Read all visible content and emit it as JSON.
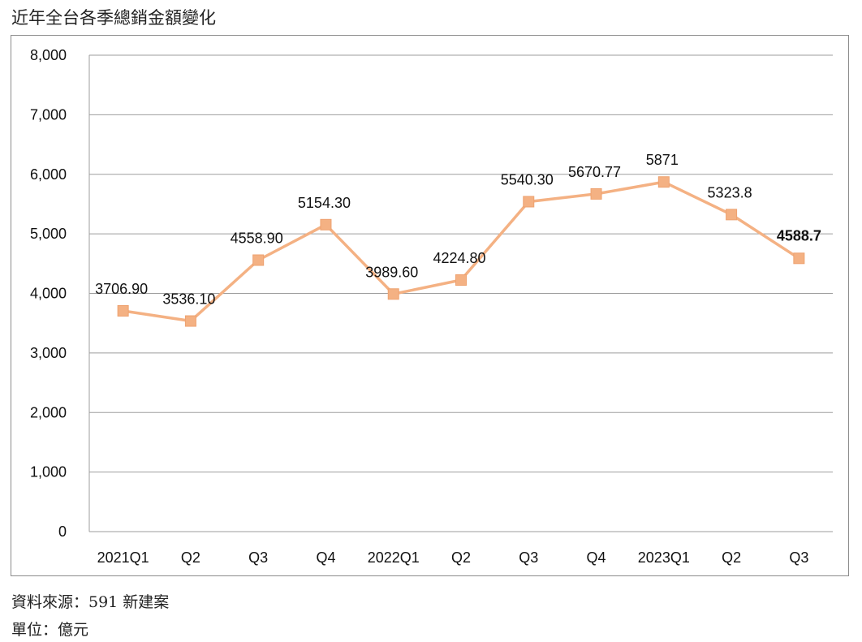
{
  "title": "近年全台各季總銷金額變化",
  "source_label": "資料來源：591 新建案",
  "unit_label": "單位：億元",
  "colors": {
    "line": "#F4B183",
    "marker": "#F4B183",
    "highlight_label": "#E31A1C",
    "grid": "#9e9e9e"
  },
  "chart_data": {
    "type": "line",
    "title": "近年全台各季總銷金額變化",
    "xlabel": "",
    "ylabel": "",
    "categories": [
      "2021Q1",
      "Q2",
      "Q3",
      "Q4",
      "2022Q1",
      "Q2",
      "Q3",
      "Q4",
      "2023Q1",
      "Q2",
      "Q3"
    ],
    "values": [
      3706.9,
      3536.1,
      4558.9,
      5154.3,
      3989.6,
      4224.8,
      5540.3,
      5670.77,
      5871,
      5323.8,
      4588.7
    ],
    "data_labels": [
      "3706.90",
      "3536.10",
      "4558.90",
      "5154.30",
      "3989.60",
      "4224.80",
      "5540.30",
      "5670.77",
      "5871",
      "5323.8",
      "4588.7"
    ],
    "highlight_index": 10,
    "ylim": [
      0,
      8000
    ],
    "yticks": [
      0,
      1000,
      2000,
      3000,
      4000,
      5000,
      6000,
      7000,
      8000
    ],
    "ytick_labels": [
      "0",
      "1,000",
      "2,000",
      "3,000",
      "4,000",
      "5,000",
      "6,000",
      "7,000",
      "8,000"
    ],
    "grid": true,
    "legend": "none"
  }
}
